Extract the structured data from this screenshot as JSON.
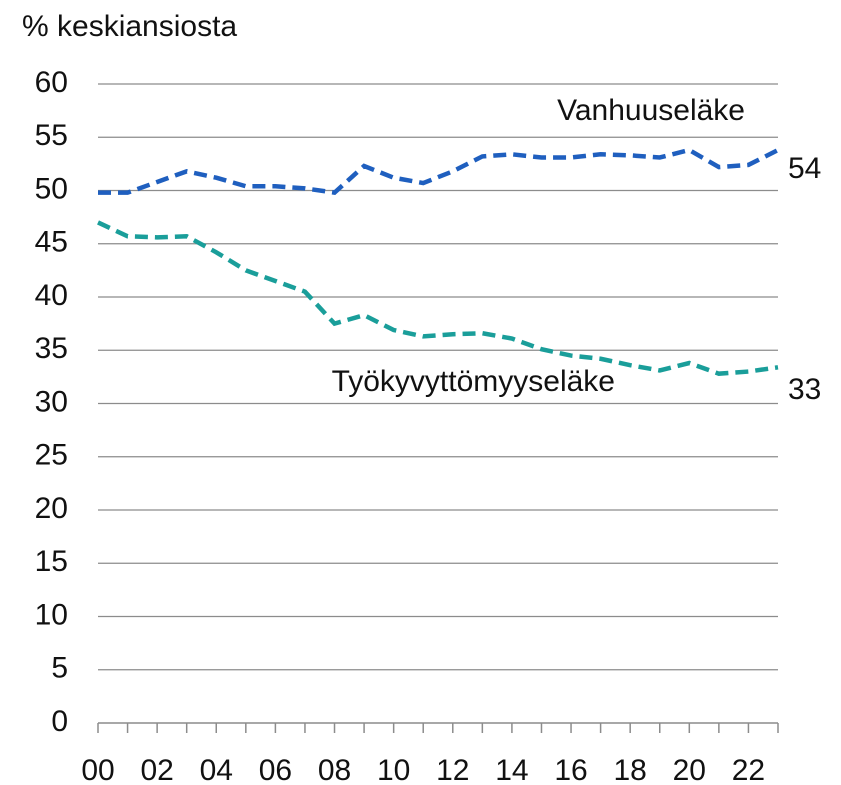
{
  "chart_data": {
    "type": "line",
    "ylabel": "% keskiansiosta",
    "categories": [
      "00",
      null,
      "02",
      null,
      "04",
      null,
      "06",
      null,
      "08",
      null,
      "10",
      null,
      "12",
      null,
      "14",
      null,
      "16",
      null,
      "18",
      null,
      "20",
      null,
      "22",
      null
    ],
    "series": [
      {
        "name": "Vanhuuseläke",
        "color": "#1f5fbf",
        "values": [
          49.8,
          49.8,
          50.8,
          51.8,
          51.2,
          50.4,
          50.4,
          50.2,
          49.8,
          52.3,
          51.2,
          50.7,
          51.8,
          53.2,
          53.4,
          53.1,
          53.1,
          53.4,
          53.3,
          53.1,
          53.8,
          52.2,
          52.4,
          53.8
        ],
        "value_labels": [
          null,
          null,
          null,
          null,
          null,
          null,
          null,
          null,
          null,
          null,
          null,
          null,
          null,
          null,
          null,
          null,
          null,
          null,
          null,
          null,
          null,
          null,
          null,
          "54"
        ]
      },
      {
        "name": "Työkyvyttömyyseläke",
        "color": "#1a9e9a",
        "values": [
          47,
          45.7,
          45.6,
          45.7,
          44.2,
          42.5,
          41.5,
          40.5,
          37.5,
          38.3,
          36.9,
          36.3,
          36.5,
          36.6,
          36.1,
          35.1,
          34.5,
          34.2,
          33.6,
          33.1,
          33.8,
          32.8,
          33.0,
          33.4
        ],
        "value_labels": [
          null,
          null,
          null,
          null,
          null,
          null,
          null,
          null,
          null,
          null,
          null,
          null,
          null,
          null,
          null,
          null,
          null,
          null,
          null,
          null,
          null,
          null,
          null,
          "33"
        ]
      }
    ],
    "ylim": [
      0,
      60
    ],
    "yticks": [
      0,
      5,
      10,
      15,
      20,
      25,
      30,
      35,
      40,
      45,
      50,
      55,
      60
    ],
    "grid": true
  }
}
